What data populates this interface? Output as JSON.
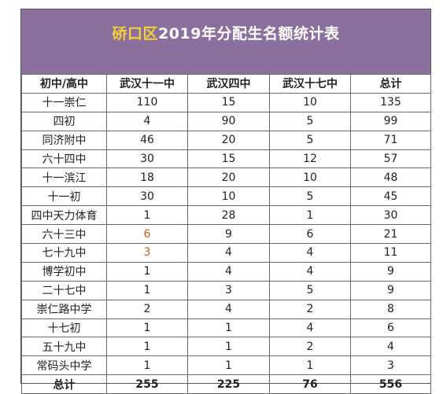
{
  "title": {
    "highlight": "硚口区",
    "rest": "2019年分配生名额统计表"
  },
  "headers": [
    "初中/高中",
    "武汉十一中",
    "武汉四中",
    "武汉十七中",
    "总计"
  ],
  "rows": [
    {
      "school": "十一崇仁",
      "v1": "110",
      "v2": "15",
      "v3": "10",
      "total": "135"
    },
    {
      "school": "四初",
      "v1": "4",
      "v2": "90",
      "v3": "5",
      "total": "99"
    },
    {
      "school": "同济附中",
      "v1": "46",
      "v2": "20",
      "v3": "5",
      "total": "71"
    },
    {
      "school": "六十四中",
      "v1": "30",
      "v2": "15",
      "v3": "12",
      "total": "57"
    },
    {
      "school": "十一滨江",
      "v1": "18",
      "v2": "20",
      "v3": "10",
      "total": "48"
    },
    {
      "school": "十一初",
      "v1": "30",
      "v2": "10",
      "v3": "5",
      "total": "45"
    },
    {
      "school": "四中天力体育",
      "v1": "1",
      "v2": "28",
      "v3": "1",
      "total": "30"
    },
    {
      "school": "六十三中",
      "v1": "6",
      "v2": "9",
      "v3": "6",
      "total": "21"
    },
    {
      "school": "七十九中",
      "v1": "3",
      "v2": "4",
      "v3": "4",
      "total": "11"
    },
    {
      "school": "博学初中",
      "v1": "1",
      "v2": "4",
      "v3": "4",
      "total": "9"
    },
    {
      "school": "二十七中",
      "v1": "1",
      "v2": "3",
      "v3": "5",
      "total": "9"
    },
    {
      "school": "崇仁路中学",
      "v1": "2",
      "v2": "4",
      "v3": "2",
      "total": "8"
    },
    {
      "school": "十七初",
      "v1": "1",
      "v2": "1",
      "v3": "4",
      "total": "6"
    },
    {
      "school": "五十九中",
      "v1": "1",
      "v2": "1",
      "v3": "2",
      "total": "4"
    },
    {
      "school": "常码头中学",
      "v1": "1",
      "v2": "1",
      "v3": "1",
      "total": "3"
    }
  ],
  "totals": {
    "label": "总计",
    "v1": "255",
    "v2": "225",
    "v3": "76",
    "total": "556"
  },
  "colors": {
    "banner_bg": "#8b6f9c",
    "title_highlight": "#f4d037",
    "title_text": "#ffffff",
    "accent_value": "#b5651d"
  }
}
